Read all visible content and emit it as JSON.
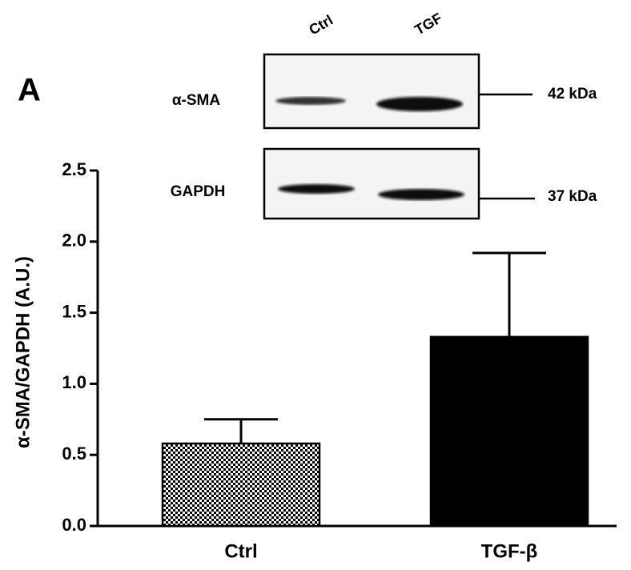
{
  "chart_data": {
    "type": "bar",
    "panel_label": "A",
    "ylabel": "α-SMA/GAPDH (A.U.)",
    "categories": [
      "Ctrl",
      "TGF-β"
    ],
    "values": [
      0.58,
      1.33
    ],
    "errors": [
      0.17,
      0.59
    ],
    "fills": [
      "checker",
      "#000000"
    ],
    "ylim": [
      0,
      2.5
    ],
    "yticks": [
      {
        "value": 0,
        "label": "0.0"
      },
      0.5,
      {
        "value": 1,
        "label": "1.0"
      },
      1.5,
      {
        "value": 2,
        "label": "2.0"
      },
      2.5
    ],
    "inset": {
      "lanes": [
        "Ctrl",
        "TGF"
      ],
      "rows": [
        {
          "name": "α-SMA",
          "size": "42 kDa"
        },
        {
          "name": "GAPDH",
          "size": "37 kDa"
        }
      ]
    }
  }
}
